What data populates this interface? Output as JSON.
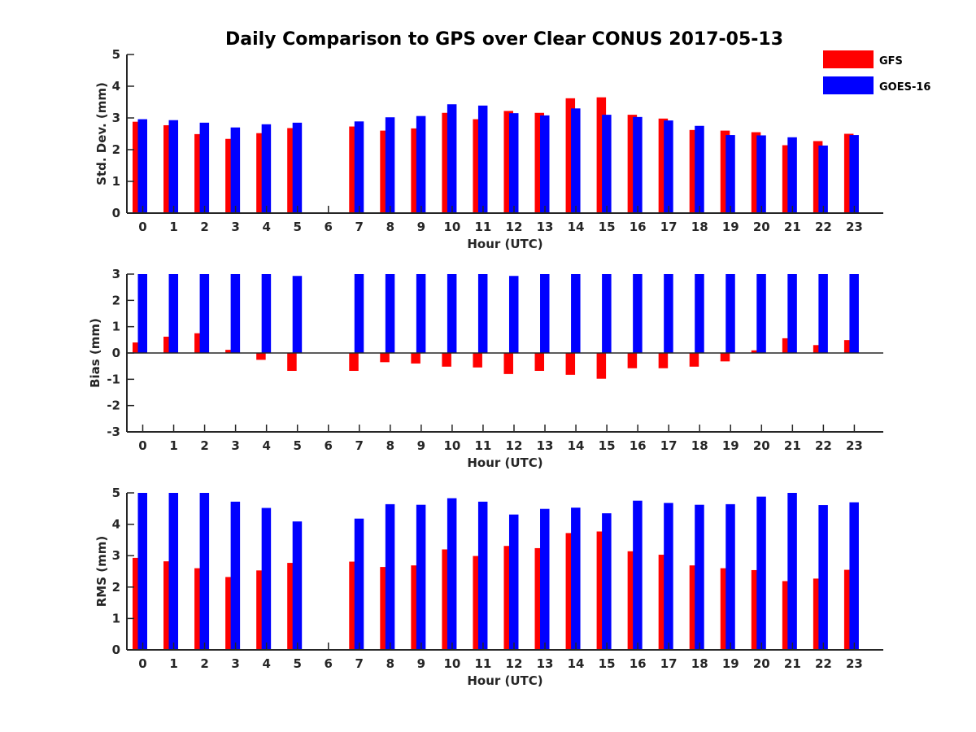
{
  "title": "Daily Comparison to GPS over Clear CONUS 2017-05-13",
  "legend": [
    {
      "name": "GFS",
      "color": "#ff0000"
    },
    {
      "name": "GOES-16",
      "color": "#0000ff"
    }
  ],
  "chart_data": [
    {
      "type": "bar",
      "title": "Daily Comparison to GPS over Clear CONUS 2017-05-13",
      "xlabel": "Hour (UTC)",
      "ylabel": "Std. Dev. (mm)",
      "ylim": [
        0,
        5
      ],
      "yticks": [
        0,
        1,
        2,
        3,
        4,
        5
      ],
      "categories": [
        "0",
        "1",
        "2",
        "3",
        "4",
        "5",
        "6",
        "7",
        "8",
        "9",
        "10",
        "11",
        "12",
        "13",
        "14",
        "15",
        "16",
        "17",
        "18",
        "19",
        "20",
        "21",
        "22",
        "23"
      ],
      "series": [
        {
          "name": "GFS",
          "color": "#ff0000",
          "values": [
            2.88,
            2.77,
            2.49,
            2.34,
            2.52,
            2.68,
            null,
            2.73,
            2.6,
            2.67,
            3.16,
            2.96,
            3.22,
            3.16,
            3.62,
            3.65,
            3.1,
            2.98,
            2.62,
            2.6,
            2.55,
            2.14,
            2.27,
            2.5
          ]
        },
        {
          "name": "GOES-16",
          "color": "#0000ff",
          "values": [
            2.96,
            2.93,
            2.85,
            2.7,
            2.8,
            2.85,
            null,
            2.89,
            3.02,
            3.06,
            3.43,
            3.39,
            3.15,
            3.08,
            3.3,
            3.1,
            3.03,
            2.92,
            2.75,
            2.46,
            2.45,
            2.39,
            2.13,
            2.46
          ]
        }
      ]
    },
    {
      "type": "bar",
      "xlabel": "Hour (UTC)",
      "ylabel": "Bias (mm)",
      "ylim": [
        -3,
        3
      ],
      "yticks": [
        -3,
        -2,
        -1,
        0,
        1,
        2,
        3
      ],
      "categories": [
        "0",
        "1",
        "2",
        "3",
        "4",
        "5",
        "6",
        "7",
        "8",
        "9",
        "10",
        "11",
        "12",
        "13",
        "14",
        "15",
        "16",
        "17",
        "18",
        "19",
        "20",
        "21",
        "22",
        "23"
      ],
      "series": [
        {
          "name": "GFS",
          "color": "#ff0000",
          "values": [
            0.4,
            0.62,
            0.75,
            0.12,
            -0.26,
            -0.68,
            null,
            -0.68,
            -0.35,
            -0.4,
            -0.52,
            -0.55,
            -0.8,
            -0.68,
            -0.83,
            -0.98,
            -0.58,
            -0.58,
            -0.52,
            -0.32,
            0.1,
            0.56,
            0.3,
            0.49
          ]
        },
        {
          "name": "GOES-16",
          "color": "#0000ff",
          "values": [
            3.0,
            3.0,
            3.0,
            3.0,
            3.0,
            2.93,
            null,
            3.0,
            3.0,
            3.0,
            3.0,
            3.0,
            2.93,
            3.0,
            3.0,
            3.0,
            3.0,
            3.0,
            3.0,
            3.0,
            3.0,
            3.0,
            3.0,
            3.0
          ]
        }
      ]
    },
    {
      "type": "bar",
      "xlabel": "Hour (UTC)",
      "ylabel": "RMS (mm)",
      "ylim": [
        0,
        5
      ],
      "yticks": [
        0,
        1,
        2,
        3,
        4,
        5
      ],
      "categories": [
        "0",
        "1",
        "2",
        "3",
        "4",
        "5",
        "6",
        "7",
        "8",
        "9",
        "10",
        "11",
        "12",
        "13",
        "14",
        "15",
        "16",
        "17",
        "18",
        "19",
        "20",
        "21",
        "22",
        "23"
      ],
      "series": [
        {
          "name": "GFS",
          "color": "#ff0000",
          "values": [
            2.93,
            2.82,
            2.6,
            2.32,
            2.53,
            2.77,
            null,
            2.81,
            2.64,
            2.69,
            3.2,
            2.99,
            3.31,
            3.24,
            3.72,
            3.77,
            3.14,
            3.03,
            2.69,
            2.6,
            2.54,
            2.19,
            2.27,
            2.55
          ]
        },
        {
          "name": "GOES-16",
          "color": "#0000ff",
          "values": [
            5.0,
            5.0,
            5.0,
            4.72,
            4.52,
            4.09,
            null,
            4.18,
            4.64,
            4.62,
            4.83,
            4.72,
            4.31,
            4.49,
            4.53,
            4.35,
            4.75,
            4.68,
            4.62,
            4.64,
            4.88,
            5.0,
            4.61,
            4.7
          ]
        }
      ]
    }
  ]
}
